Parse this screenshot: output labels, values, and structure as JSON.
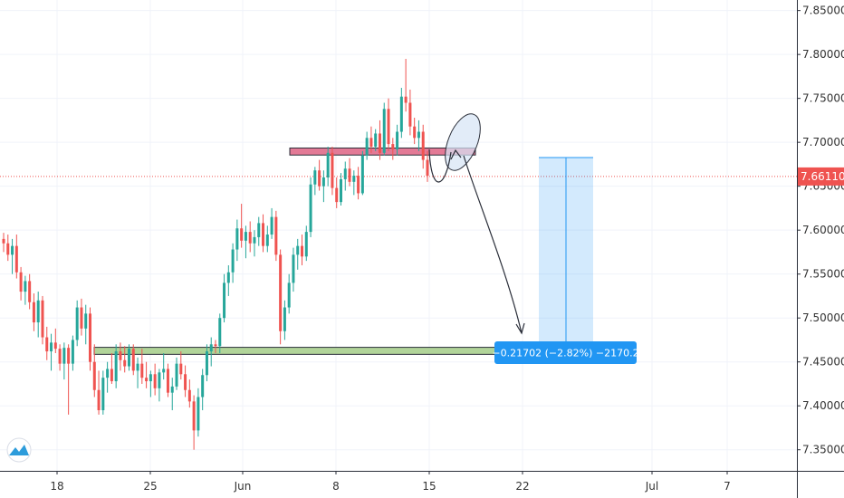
{
  "chart_data": {
    "type": "candlestick",
    "x_ticks": [
      "18",
      "25",
      "Jun",
      "8",
      "15",
      "22",
      "Jul",
      "7"
    ],
    "y_ticks": [
      "7.35000",
      "7.40000",
      "7.45000",
      "7.50000",
      "7.55000",
      "7.60000",
      "7.65000",
      "7.70000",
      "7.75000",
      "7.80000",
      "7.85000"
    ],
    "ylim": [
      7.326,
      7.862
    ],
    "last_price": 7.6611,
    "last_price_label": "7.66110",
    "measure": {
      "from": 7.6826,
      "to": 7.4656,
      "label": "−0.21702 (−2.82%) −2170.2"
    },
    "zones": [
      {
        "name": "resistance",
        "low": 7.6855,
        "high": 7.6935,
        "color": "#e06b8b"
      },
      {
        "name": "support",
        "low": 7.4586,
        "high": 7.4666,
        "color": "#a8cf8e"
      }
    ],
    "grid": true,
    "colors": {
      "up": "#26a69a",
      "down": "#ef5350",
      "price_line": "#ef5350",
      "measure": "#2196f3"
    },
    "ohlc": [
      [
        7.59,
        7.597,
        7.575,
        7.585
      ],
      [
        7.585,
        7.595,
        7.565,
        7.572
      ],
      [
        7.572,
        7.59,
        7.55,
        7.582
      ],
      [
        7.582,
        7.595,
        7.545,
        7.552
      ],
      [
        7.552,
        7.558,
        7.52,
        7.53
      ],
      [
        7.53,
        7.548,
        7.515,
        7.542
      ],
      [
        7.542,
        7.55,
        7.51,
        7.518
      ],
      [
        7.518,
        7.528,
        7.485,
        7.495
      ],
      [
        7.495,
        7.53,
        7.478,
        7.52
      ],
      [
        7.52,
        7.525,
        7.47,
        7.478
      ],
      [
        7.478,
        7.49,
        7.452,
        7.462
      ],
      [
        7.462,
        7.482,
        7.44,
        7.472
      ],
      [
        7.472,
        7.488,
        7.46,
        7.465
      ],
      [
        7.465,
        7.47,
        7.44,
        7.448
      ],
      [
        7.448,
        7.472,
        7.43,
        7.466
      ],
      [
        7.466,
        7.47,
        7.39,
        7.448
      ],
      [
        7.448,
        7.48,
        7.44,
        7.475
      ],
      [
        7.475,
        7.52,
        7.468,
        7.512
      ],
      [
        7.512,
        7.522,
        7.48,
        7.488
      ],
      [
        7.488,
        7.515,
        7.47,
        7.505
      ],
      [
        7.505,
        7.512,
        7.44,
        7.45
      ],
      [
        7.45,
        7.47,
        7.41,
        7.418
      ],
      [
        7.418,
        7.44,
        7.39,
        7.395
      ],
      [
        7.395,
        7.44,
        7.39,
        7.432
      ],
      [
        7.432,
        7.45,
        7.415,
        7.442
      ],
      [
        7.442,
        7.46,
        7.425,
        7.428
      ],
      [
        7.428,
        7.47,
        7.42,
        7.462
      ],
      [
        7.462,
        7.472,
        7.44,
        7.452
      ],
      [
        7.452,
        7.468,
        7.438,
        7.445
      ],
      [
        7.445,
        7.47,
        7.44,
        7.465
      ],
      [
        7.465,
        7.47,
        7.435,
        7.44
      ],
      [
        7.44,
        7.455,
        7.42,
        7.448
      ],
      [
        7.448,
        7.465,
        7.425,
        7.432
      ],
      [
        7.432,
        7.45,
        7.42,
        7.428
      ],
      [
        7.428,
        7.44,
        7.41,
        7.436
      ],
      [
        7.436,
        7.448,
        7.412,
        7.42
      ],
      [
        7.42,
        7.442,
        7.405,
        7.438
      ],
      [
        7.438,
        7.46,
        7.43,
        7.442
      ],
      [
        7.442,
        7.448,
        7.41,
        7.415
      ],
      [
        7.415,
        7.432,
        7.395,
        7.422
      ],
      [
        7.422,
        7.455,
        7.418,
        7.448
      ],
      [
        7.448,
        7.462,
        7.43,
        7.436
      ],
      [
        7.436,
        7.446,
        7.41,
        7.418
      ],
      [
        7.418,
        7.43,
        7.398,
        7.405
      ],
      [
        7.405,
        7.412,
        7.35,
        7.372
      ],
      [
        7.372,
        7.42,
        7.365,
        7.41
      ],
      [
        7.41,
        7.442,
        7.395,
        7.435
      ],
      [
        7.435,
        7.47,
        7.428,
        7.462
      ],
      [
        7.462,
        7.478,
        7.445,
        7.47
      ],
      [
        7.47,
        7.475,
        7.46,
        7.468
      ],
      [
        7.468,
        7.505,
        7.46,
        7.5
      ],
      [
        7.5,
        7.55,
        7.495,
        7.54
      ],
      [
        7.54,
        7.56,
        7.525,
        7.552
      ],
      [
        7.552,
        7.585,
        7.54,
        7.578
      ],
      [
        7.578,
        7.612,
        7.565,
        7.602
      ],
      [
        7.602,
        7.63,
        7.58,
        7.588
      ],
      [
        7.588,
        7.605,
        7.568,
        7.598
      ],
      [
        7.598,
        7.61,
        7.575,
        7.585
      ],
      [
        7.585,
        7.6,
        7.57,
        7.592
      ],
      [
        7.592,
        7.615,
        7.582,
        7.608
      ],
      [
        7.608,
        7.618,
        7.575,
        7.582
      ],
      [
        7.582,
        7.605,
        7.575,
        7.595
      ],
      [
        7.595,
        7.625,
        7.59,
        7.615
      ],
      [
        7.615,
        7.622,
        7.565,
        7.572
      ],
      [
        7.572,
        7.578,
        7.47,
        7.485
      ],
      [
        7.485,
        7.52,
        7.475,
        7.512
      ],
      [
        7.512,
        7.55,
        7.505,
        7.54
      ],
      [
        7.54,
        7.58,
        7.53,
        7.572
      ],
      [
        7.572,
        7.59,
        7.555,
        7.582
      ],
      [
        7.582,
        7.595,
        7.56,
        7.57
      ],
      [
        7.57,
        7.605,
        7.565,
        7.598
      ],
      [
        7.598,
        7.66,
        7.592,
        7.652
      ],
      [
        7.652,
        7.672,
        7.64,
        7.668
      ],
      [
        7.668,
        7.68,
        7.645,
        7.65
      ],
      [
        7.65,
        7.668,
        7.632,
        7.66
      ],
      [
        7.66,
        7.695,
        7.65,
        7.688
      ],
      [
        7.688,
        7.695,
        7.64,
        7.648
      ],
      [
        7.648,
        7.66,
        7.625,
        7.632
      ],
      [
        7.632,
        7.665,
        7.628,
        7.658
      ],
      [
        7.658,
        7.678,
        7.645,
        7.67
      ],
      [
        7.67,
        7.682,
        7.65,
        7.655
      ],
      [
        7.655,
        7.668,
        7.64,
        7.662
      ],
      [
        7.662,
        7.672,
        7.635,
        7.642
      ],
      [
        7.642,
        7.69,
        7.64,
        7.685
      ],
      [
        7.685,
        7.712,
        7.68,
        7.705
      ],
      [
        7.705,
        7.718,
        7.688,
        7.695
      ],
      [
        7.695,
        7.715,
        7.69,
        7.71
      ],
      [
        7.71,
        7.725,
        7.68,
        7.688
      ],
      [
        7.688,
        7.745,
        7.685,
        7.738
      ],
      [
        7.738,
        7.75,
        7.69,
        7.698
      ],
      [
        7.698,
        7.705,
        7.68,
        7.692
      ],
      [
        7.692,
        7.72,
        7.685,
        7.712
      ],
      [
        7.712,
        7.762,
        7.705,
        7.752
      ],
      [
        7.752,
        7.795,
        7.735,
        7.745
      ],
      [
        7.745,
        7.76,
        7.708,
        7.718
      ],
      [
        7.718,
        7.728,
        7.698,
        7.705
      ],
      [
        7.705,
        7.725,
        7.69,
        7.712
      ],
      [
        7.712,
        7.72,
        7.67,
        7.68
      ],
      [
        7.68,
        7.69,
        7.655,
        7.662
      ]
    ]
  }
}
